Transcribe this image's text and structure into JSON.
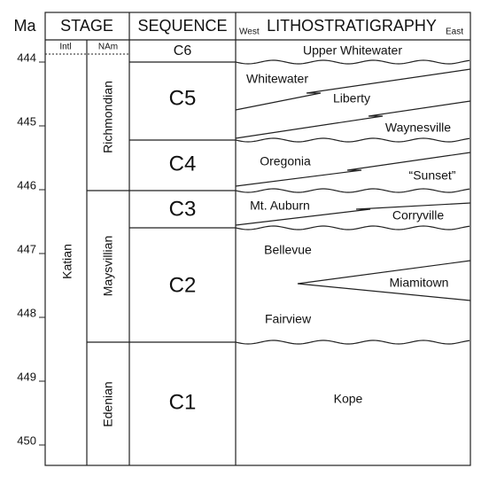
{
  "header": {
    "ma": "Ma",
    "stage": "STAGE",
    "sequence": "SEQUENCE",
    "litho_west": "West",
    "litho": "LITHOSTRATIGRAPHY",
    "litho_east": "East",
    "intl": "Intl",
    "nam": "NAm"
  },
  "ma_ticks": [
    444,
    445,
    446,
    447,
    448,
    449,
    450
  ],
  "intl_stages": [
    "Katian"
  ],
  "nam_stages": [
    "Richmondian",
    "Maysvillian",
    "Edenian"
  ],
  "sequences": [
    "C6",
    "C5",
    "C4",
    "C3",
    "C2",
    "C1"
  ],
  "formations": [
    "Upper Whitewater",
    "Whitewater",
    "Liberty",
    "Waynesville",
    "Oregonia",
    "“Sunset”",
    "Mt. Auburn",
    "Corryville",
    "Bellevue",
    "Miamitown",
    "Fairview",
    "Kope"
  ]
}
